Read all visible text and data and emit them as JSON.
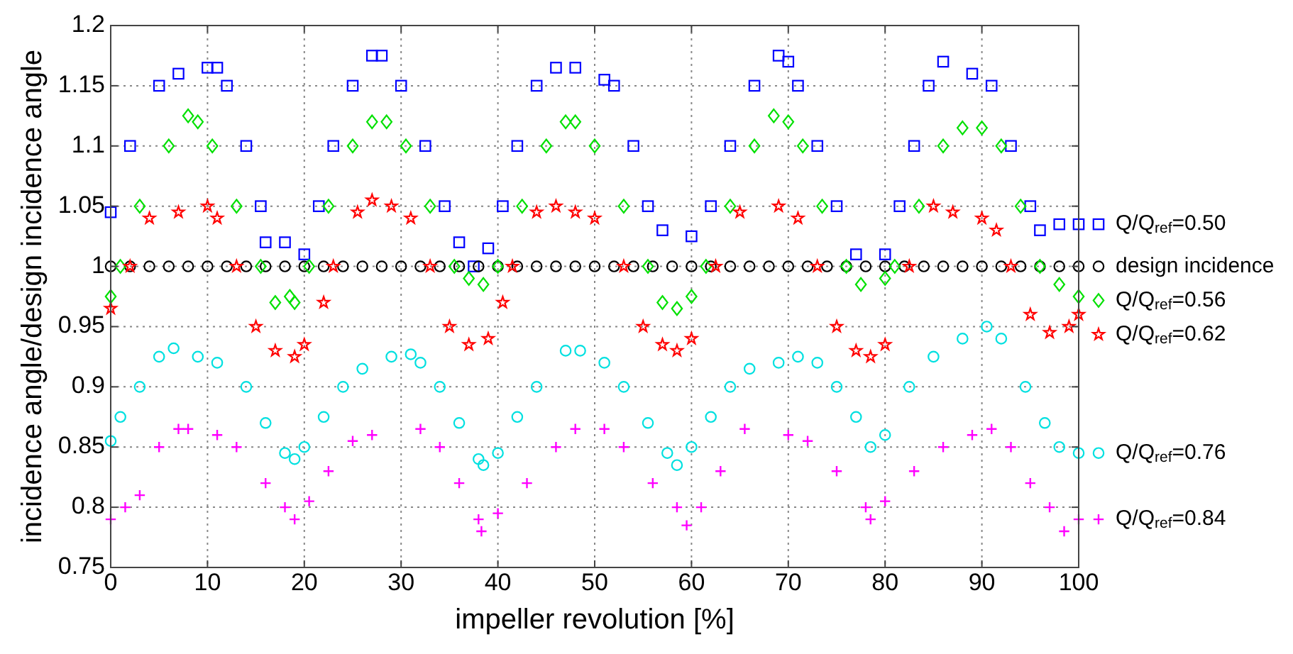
{
  "chart_data": {
    "type": "scatter",
    "xlabel": "impeller revolution [%]",
    "ylabel": "incidence angle/design incidence angle",
    "xlim": [
      0,
      100
    ],
    "ylim": [
      0.75,
      1.2
    ],
    "xticks": [
      0,
      10,
      20,
      30,
      40,
      50,
      60,
      70,
      80,
      90,
      100
    ],
    "yticks": [
      0.75,
      0.8,
      0.85,
      0.9,
      0.95,
      1,
      1.05,
      1.1,
      1.15,
      1.2
    ],
    "grid": true,
    "legend": "right",
    "series": [
      {
        "name": "Q/Q$_{ref}$=0.50",
        "color": "#0000ff",
        "marker": "square",
        "x": [
          0,
          2,
          5,
          7,
          10,
          11,
          12,
          14,
          15.5,
          16,
          18,
          20,
          21.5,
          23,
          25,
          27,
          28,
          30,
          32.5,
          34.5,
          36,
          37.5,
          39,
          40.5,
          42,
          44,
          46,
          48,
          51,
          52,
          54,
          55.5,
          57,
          60,
          62,
          64,
          66.5,
          69,
          70,
          71,
          73,
          75,
          77,
          80,
          81.5,
          83,
          84.5,
          86,
          89,
          91,
          93,
          95,
          96,
          98,
          100
        ],
        "values": [
          1.045,
          1.1,
          1.15,
          1.16,
          1.165,
          1.165,
          1.15,
          1.1,
          1.05,
          1.02,
          1.02,
          1.01,
          1.05,
          1.1,
          1.15,
          1.175,
          1.175,
          1.15,
          1.1,
          1.05,
          1.02,
          1.0,
          1.015,
          1.05,
          1.1,
          1.15,
          1.165,
          1.165,
          1.155,
          1.15,
          1.1,
          1.05,
          1.03,
          1.025,
          1.05,
          1.1,
          1.15,
          1.175,
          1.17,
          1.15,
          1.1,
          1.05,
          1.01,
          1.01,
          1.05,
          1.1,
          1.15,
          1.17,
          1.16,
          1.15,
          1.1,
          1.05,
          1.03,
          1.035,
          1.035
        ]
      },
      {
        "name": "design incidence",
        "color": "#000000",
        "marker": "circle",
        "x": [
          0,
          2,
          4,
          6,
          8,
          10,
          12,
          14,
          16,
          18,
          20,
          22,
          24,
          26,
          28,
          30,
          32,
          34,
          36,
          38,
          40,
          42,
          44,
          46,
          48,
          50,
          52,
          54,
          56,
          58,
          60,
          62,
          64,
          66,
          68,
          70,
          72,
          74,
          76,
          78,
          80,
          82,
          84,
          86,
          88,
          90,
          92,
          94,
          96,
          98,
          100
        ],
        "values": [
          1,
          1,
          1,
          1,
          1,
          1,
          1,
          1,
          1,
          1,
          1,
          1,
          1,
          1,
          1,
          1,
          1,
          1,
          1,
          1,
          1,
          1,
          1,
          1,
          1,
          1,
          1,
          1,
          1,
          1,
          1,
          1,
          1,
          1,
          1,
          1,
          1,
          1,
          1,
          1,
          1,
          1,
          1,
          1,
          1,
          1,
          1,
          1,
          1,
          1,
          1
        ]
      },
      {
        "name": "Q/Q$_{ref}$=0.56",
        "color": "#00e000",
        "marker": "diamond",
        "x": [
          0,
          1,
          3,
          6,
          8,
          9,
          10.5,
          13,
          15.5,
          17,
          18.5,
          19,
          20.5,
          22.5,
          25,
          27,
          28.5,
          30.5,
          33,
          35.5,
          37,
          38.5,
          40,
          42.5,
          45,
          47,
          48,
          50,
          53,
          55.5,
          57,
          58.5,
          60,
          61.5,
          64,
          66.5,
          68.5,
          70,
          71.5,
          73.5,
          76,
          77.5,
          80,
          81,
          83.5,
          86,
          88,
          90,
          92,
          94,
          96,
          98,
          100
        ],
        "values": [
          0.975,
          1.0,
          1.05,
          1.1,
          1.125,
          1.12,
          1.1,
          1.05,
          1.0,
          0.97,
          0.975,
          0.97,
          1.0,
          1.05,
          1.1,
          1.12,
          1.12,
          1.1,
          1.05,
          1.0,
          0.99,
          0.985,
          1.0,
          1.05,
          1.1,
          1.12,
          1.12,
          1.1,
          1.05,
          1.0,
          0.97,
          0.965,
          0.975,
          1.0,
          1.05,
          1.1,
          1.125,
          1.12,
          1.1,
          1.05,
          1.0,
          0.985,
          0.99,
          1.0,
          1.05,
          1.1,
          1.115,
          1.115,
          1.1,
          1.05,
          1.0,
          0.985,
          0.975
        ]
      },
      {
        "name": "Q/Q$_{ref}$=0.62",
        "color": "#ff0000",
        "marker": "star",
        "x": [
          0,
          2,
          4,
          7,
          10,
          11,
          13,
          15,
          17,
          19,
          20,
          22,
          23,
          25.5,
          27,
          29,
          31,
          33,
          35,
          37,
          39,
          40.5,
          41.5,
          44,
          46,
          48,
          50,
          53,
          55,
          57,
          58.5,
          60,
          62.5,
          65,
          69,
          71,
          73,
          75,
          77,
          78.5,
          80,
          82.5,
          85,
          87,
          90,
          91.5,
          93,
          95,
          97,
          99,
          100
        ],
        "values": [
          0.965,
          1.0,
          1.04,
          1.045,
          1.05,
          1.04,
          1.0,
          0.95,
          0.93,
          0.925,
          0.935,
          0.97,
          1.0,
          1.045,
          1.055,
          1.05,
          1.04,
          1.0,
          0.95,
          0.935,
          0.94,
          0.97,
          1.0,
          1.045,
          1.05,
          1.045,
          1.04,
          1.0,
          0.95,
          0.935,
          0.93,
          0.94,
          1.0,
          1.045,
          1.05,
          1.04,
          1.0,
          0.95,
          0.93,
          0.925,
          0.935,
          1.0,
          1.05,
          1.045,
          1.04,
          1.03,
          1.0,
          0.96,
          0.945,
          0.95,
          0.96
        ]
      },
      {
        "name": "Q/Q$_{ref}$=0.76",
        "color": "#00e0e0",
        "marker": "circle",
        "x": [
          0,
          1,
          3,
          5,
          6.5,
          9,
          11,
          14,
          16,
          18,
          19,
          20,
          22,
          24,
          26,
          29,
          31,
          32,
          34,
          36,
          38,
          38.5,
          40,
          42,
          44,
          47,
          48.5,
          51,
          53,
          55.5,
          57.5,
          58.5,
          60,
          62,
          64,
          66,
          69,
          71,
          73,
          75,
          77,
          78.5,
          80,
          82.5,
          85,
          88,
          90.5,
          92,
          94.5,
          96.5,
          98,
          100
        ],
        "values": [
          0.855,
          0.875,
          0.9,
          0.925,
          0.932,
          0.925,
          0.92,
          0.9,
          0.87,
          0.845,
          0.84,
          0.85,
          0.875,
          0.9,
          0.915,
          0.925,
          0.927,
          0.92,
          0.9,
          0.87,
          0.84,
          0.835,
          0.845,
          0.875,
          0.9,
          0.93,
          0.93,
          0.92,
          0.9,
          0.87,
          0.845,
          0.835,
          0.85,
          0.875,
          0.9,
          0.915,
          0.92,
          0.925,
          0.92,
          0.9,
          0.875,
          0.85,
          0.86,
          0.9,
          0.925,
          0.94,
          0.95,
          0.94,
          0.9,
          0.87,
          0.85,
          0.845
        ]
      },
      {
        "name": "Q/Q$_{ref}$=0.84",
        "color": "#ff00ff",
        "marker": "cross",
        "x": [
          0,
          1.5,
          3,
          5,
          7,
          8,
          11,
          13,
          16,
          18,
          19,
          20.5,
          22.5,
          25,
          27,
          32,
          34,
          36,
          38,
          38.3,
          40,
          43,
          46,
          48,
          51,
          53,
          56,
          58.5,
          59.5,
          61,
          63,
          65.5,
          70,
          72,
          75,
          78,
          78.5,
          80,
          83,
          86,
          89,
          91,
          93,
          95,
          97,
          98.5,
          100
        ],
        "values": [
          0.79,
          0.8,
          0.81,
          0.85,
          0.865,
          0.865,
          0.86,
          0.85,
          0.82,
          0.8,
          0.79,
          0.805,
          0.83,
          0.855,
          0.86,
          0.865,
          0.85,
          0.82,
          0.79,
          0.78,
          0.795,
          0.82,
          0.85,
          0.865,
          0.865,
          0.85,
          0.82,
          0.8,
          0.785,
          0.8,
          0.83,
          0.865,
          0.86,
          0.855,
          0.83,
          0.8,
          0.79,
          0.805,
          0.83,
          0.85,
          0.86,
          0.865,
          0.85,
          0.82,
          0.8,
          0.78,
          0.79
        ]
      }
    ]
  }
}
